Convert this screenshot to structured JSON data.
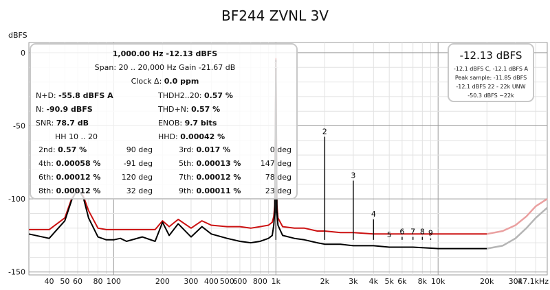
{
  "chart_data": {
    "type": "line",
    "title": "BF244 ZVNL 3V",
    "ylabel": "dBFS",
    "xlabel": "",
    "x_scale": "log",
    "xlim": [
      30,
      47100
    ],
    "ylim": [
      -152,
      7
    ],
    "grid": true,
    "x_ticks": [
      {
        "value": 40,
        "label": "40"
      },
      {
        "value": 50,
        "label": "50"
      },
      {
        "value": 60,
        "label": "60"
      },
      {
        "value": 80,
        "label": "80"
      },
      {
        "value": 100,
        "label": "100"
      },
      {
        "value": 200,
        "label": "200"
      },
      {
        "value": 300,
        "label": "300"
      },
      {
        "value": 400,
        "label": "400"
      },
      {
        "value": 500,
        "label": "500"
      },
      {
        "value": 600,
        "label": "600"
      },
      {
        "value": 800,
        "label": "800"
      },
      {
        "value": 1000,
        "label": "1k"
      },
      {
        "value": 2000,
        "label": "2k"
      },
      {
        "value": 3000,
        "label": "3k"
      },
      {
        "value": 4000,
        "label": "4k"
      },
      {
        "value": 5000,
        "label": "5k"
      },
      {
        "value": 6000,
        "label": "6k"
      },
      {
        "value": 8000,
        "label": "8k"
      },
      {
        "value": 10000,
        "label": "10k"
      },
      {
        "value": 20000,
        "label": "20k"
      },
      {
        "value": 30000,
        "label": "30k"
      },
      {
        "value": 47100,
        "label": "47.1kHz"
      }
    ],
    "y_ticks": [
      {
        "value": 0,
        "label": "0"
      },
      {
        "value": -50,
        "label": "-50"
      },
      {
        "value": -100,
        "label": "-100"
      },
      {
        "value": -150,
        "label": "-150"
      }
    ],
    "series": [
      {
        "color": "#cc1111",
        "x": [
          30,
          40,
          50,
          55,
          60,
          65,
          70,
          80,
          90,
          100,
          110,
          120,
          150,
          180,
          200,
          220,
          250,
          300,
          350,
          400,
          500,
          600,
          700,
          800,
          900,
          950,
          970,
          985,
          1000,
          1015,
          1030,
          1100,
          1300,
          1500,
          1800,
          2000,
          2500,
          3000,
          4000,
          5000,
          7000,
          10000,
          15000,
          20000
        ],
        "y": [
          -121,
          -121,
          -113,
          -100,
          -94,
          -98,
          -108,
          -120,
          -121,
          -121,
          -121,
          -121,
          -121,
          -121,
          -115,
          -119,
          -114,
          -120,
          -115,
          -118,
          -119,
          -119,
          -120,
          -119,
          -118,
          -116,
          -112,
          -104,
          -4,
          -104,
          -113,
          -119,
          -120,
          -120,
          -122,
          -122,
          -123,
          -123,
          -124,
          -124,
          -124,
          -124,
          -124,
          -124
        ]
      },
      {
        "color": "#000000",
        "x": [
          30,
          40,
          50,
          55,
          60,
          65,
          70,
          80,
          90,
          100,
          110,
          120,
          150,
          180,
          200,
          220,
          250,
          300,
          350,
          400,
          500,
          600,
          700,
          800,
          900,
          950,
          970,
          985,
          1000,
          1015,
          1030,
          1100,
          1300,
          1500,
          1800,
          2000,
          2500,
          3000,
          4000,
          5000,
          7000,
          10000,
          15000,
          20000
        ],
        "y": [
          -124,
          -127,
          -115,
          -101,
          -93,
          -99,
          -113,
          -126,
          -128,
          -128,
          -127,
          -129,
          -126,
          -129,
          -116,
          -125,
          -117,
          -126,
          -119,
          -124,
          -127,
          -129,
          -130,
          -129,
          -127,
          -125,
          -118,
          -108,
          -5,
          -108,
          -118,
          -125,
          -127,
          -128,
          -130,
          -131,
          -131,
          -132,
          -132,
          -133,
          -133,
          -134,
          -134,
          -134
        ]
      },
      {
        "color": "#eaa0a0",
        "x": [
          20000,
          25000,
          30000,
          35000,
          40000,
          47100
        ],
        "y": [
          -124,
          -122,
          -118,
          -112,
          -105,
          -100
        ]
      },
      {
        "color": "#b5b5b5",
        "x": [
          20000,
          25000,
          30000,
          35000,
          40000,
          47100
        ],
        "y": [
          -134,
          -132,
          -127,
          -120,
          -113,
          -106
        ]
      }
    ],
    "harmonics": [
      {
        "label": "1",
        "x": 1000,
        "y": -12.13,
        "color": "#aaaaaa"
      },
      {
        "label": "2",
        "x": 2000,
        "y": -57.5,
        "color": "#000000"
      },
      {
        "label": "3",
        "x": 3000,
        "y": -87.5,
        "color": "#000000"
      },
      {
        "label": "4",
        "x": 4000,
        "y": -114,
        "color": "#000000"
      },
      {
        "label": "5",
        "x": 5000,
        "y": -128,
        "color": "#000000"
      },
      {
        "label": "6",
        "x": 6000,
        "y": -126,
        "color": "#000000"
      },
      {
        "label": "7",
        "x": 7000,
        "y": -126,
        "color": "#000000"
      },
      {
        "label": "8",
        "x": 8000,
        "y": -126,
        "color": "#000000"
      },
      {
        "label": "9",
        "x": 9000,
        "y": -127,
        "color": "#000000"
      }
    ],
    "info_box": {
      "line1": "1,000.00 Hz  -12.13 dBFS",
      "line2": "Span: 20 .. 20,000 Hz   Gain -21.67 dB",
      "line3_label": "Clock Δ: ",
      "line3_value": "0.0 ppm",
      "rows": [
        {
          "l1": "N+D: ",
          "v1": "-55.8 dBFS A",
          "l2": "THDH2..20: ",
          "v2": "0.57 %"
        },
        {
          "l1": "N: ",
          "v1": "-90.9 dBFS",
          "l2": "THD+N: ",
          "v2": "0.57 %"
        },
        {
          "l1": "SNR: ",
          "v1": "78.7 dB",
          "l2": "ENOB: ",
          "v2": "9.7 bits"
        },
        {
          "l1": "HH 10 .. 20",
          "v1": "",
          "l2": "HHD: ",
          "v2": "0.00042 %"
        }
      ],
      "harmonic_rows": [
        {
          "la": "2nd: ",
          "va": "0.57 %",
          "pa": "90 deg",
          "lb": "3rd: ",
          "vb": "0.017 %",
          "pb": "0 deg"
        },
        {
          "la": "4th: ",
          "va": "0.00058 %",
          "pa": "-91 deg",
          "lb": "5th: ",
          "vb": "0.00013 %",
          "pb": "147 deg"
        },
        {
          "la": "6th: ",
          "va": "0.00012 %",
          "pa": "120 deg",
          "lb": "7th: ",
          "vb": "0.00012 %",
          "pb": "78 deg"
        },
        {
          "la": "8th: ",
          "va": "0.00012 %",
          "pa": "32 deg",
          "lb": "9th: ",
          "vb": "0.00011 %",
          "pb": "23 deg"
        }
      ]
    },
    "level_box": {
      "main": "-12.13 dBFS",
      "line1": "-12.1 dBFS C, -12.1 dBFS A",
      "line2": "Peak sample: -11.85 dBFS",
      "line3": "-12.1 dBFS 22 - 22k UNW",
      "line4": "-50.3 dBFS ~22k"
    }
  }
}
